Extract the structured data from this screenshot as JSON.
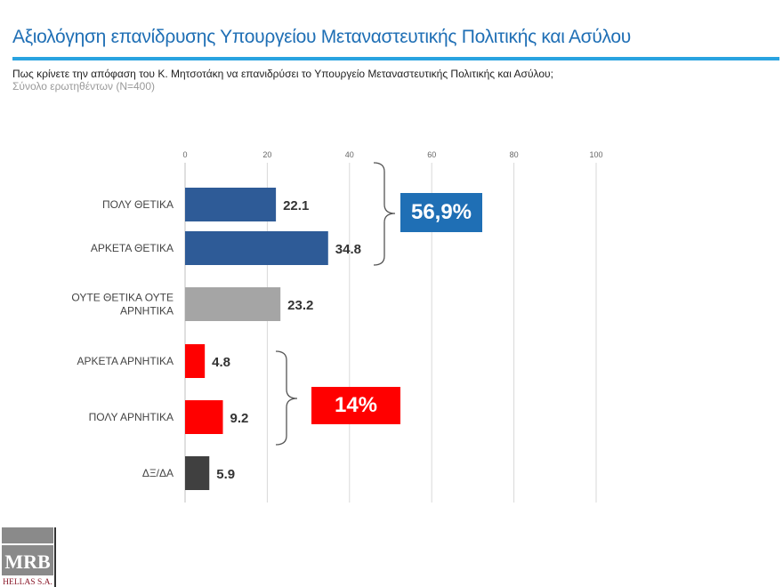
{
  "header": {
    "title": "Αξιολόγηση επανίδρυσης Υπουργείου Μεταναστευτικής Πολιτικής και Ασύλου",
    "question": "Πως κρίνετε την απόφαση του Κ. Μητσοτάκη να επανιδρύσει το Υπουργείο Μεταναστευτικής Πολιτικής και Ασύλου;",
    "sample": "Σύνολο ερωτηθέντων (N=400)"
  },
  "chart_data": {
    "type": "bar",
    "orientation": "horizontal",
    "categories": [
      [
        "ΠΟΛΥ ΘΕΤΙΚΑ"
      ],
      [
        "ΑΡΚΕΤΑ ΘΕΤΙΚΑ"
      ],
      [
        "ΟΥΤΕ ΘΕΤΙΚΑ ΟΥΤΕ",
        "ΑΡΝΗΤΙΚΑ"
      ],
      [
        "ΑΡΚΕΤΑ ΑΡΝΗΤΙΚΑ"
      ],
      [
        "ΠΟΛΥ ΑΡΝΗΤΙΚΑ"
      ],
      [
        "ΔΞ/ΔΑ"
      ]
    ],
    "values": [
      22.1,
      34.8,
      23.2,
      4.8,
      9.2,
      5.9
    ],
    "colors": [
      "#2E5B97",
      "#2E5B97",
      "#A5A5A5",
      "#FF0000",
      "#FF0000",
      "#404040"
    ],
    "xlim": [
      0,
      100
    ],
    "ticks": [
      0,
      20,
      40,
      60,
      80,
      100
    ],
    "grid": true,
    "axis_position": "top",
    "annotations": [
      {
        "text": "56,9%",
        "color": "#1F6FB5",
        "groups": [
          0,
          1
        ]
      },
      {
        "text": "14%",
        "color": "#FF0000",
        "groups": [
          3,
          4
        ]
      }
    ]
  },
  "logo": {
    "line1": "MRB",
    "line2": "HELLAS S.A."
  }
}
